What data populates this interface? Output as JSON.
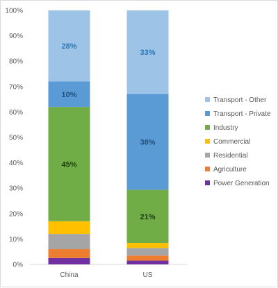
{
  "chart_data": {
    "type": "bar",
    "stacked": true,
    "percent_stacked": true,
    "categories": [
      "China",
      "US"
    ],
    "ylim": [
      0,
      100
    ],
    "yticks": [
      "0%",
      "10%",
      "20%",
      "30%",
      "40%",
      "50%",
      "60%",
      "70%",
      "80%",
      "90%",
      "100%"
    ],
    "grid": false,
    "legend_position": "right",
    "series": [
      {
        "name": "Power Generation",
        "color": "#7030a0",
        "values": [
          2.5,
          1.5
        ],
        "labels": [
          "",
          ""
        ]
      },
      {
        "name": "Agriculture",
        "color": "#ed7d31",
        "values": [
          3.5,
          2
        ],
        "labels": [
          "",
          ""
        ]
      },
      {
        "name": "Residential",
        "color": "#a5a5a5",
        "values": [
          6,
          3
        ],
        "labels": [
          "",
          ""
        ]
      },
      {
        "name": "Commercial",
        "color": "#ffc000",
        "values": [
          5,
          2
        ],
        "labels": [
          "",
          ""
        ]
      },
      {
        "name": "Industry",
        "color": "#70ad47",
        "values": [
          45,
          21
        ],
        "labels": [
          "45%",
          "21%"
        ]
      },
      {
        "name": "Transport - Private",
        "color": "#5b9bd5",
        "values": [
          10,
          38
        ],
        "labels": [
          "10%",
          "38%"
        ]
      },
      {
        "name": "Transport - Other",
        "color": "#9dc3e6",
        "values": [
          28,
          33
        ],
        "labels": [
          "28%",
          "33%"
        ]
      }
    ]
  }
}
